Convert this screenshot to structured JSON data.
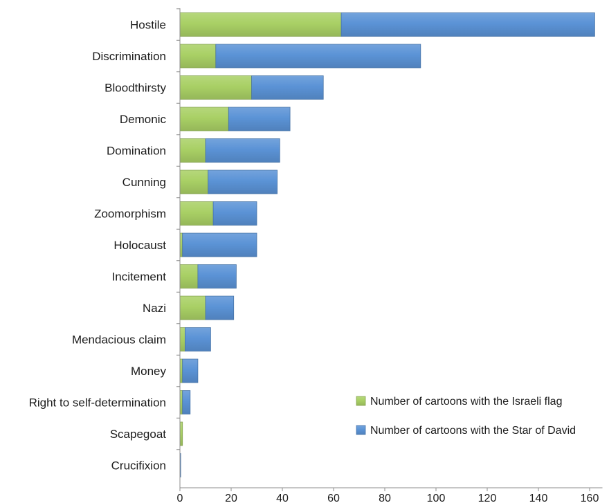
{
  "chart_data": {
    "type": "bar",
    "orientation": "horizontal",
    "stacked": true,
    "categories": [
      "Hostile",
      "Discrimination",
      "Bloodthirsty",
      "Demonic",
      "Domination",
      "Cunning",
      "Zoomorphism",
      "Holocaust",
      "Incitement",
      "Nazi",
      "Mendacious claim",
      "Money",
      "Right to self-determination",
      "Scapegoat",
      "Crucifixion"
    ],
    "series": [
      {
        "name": "Number of cartoons with the Israeli flag",
        "color": "#a9d065",
        "values": [
          63,
          14,
          28,
          19,
          10,
          11,
          13,
          1,
          7,
          10,
          2,
          1,
          1,
          1,
          0
        ]
      },
      {
        "name": "Number of cartoons with the Star of David",
        "color": "#5b93d6",
        "values": [
          99,
          80,
          28,
          24,
          29,
          27,
          17,
          29,
          15,
          11,
          10,
          6,
          3,
          0,
          0.3
        ]
      }
    ],
    "xlim": [
      0,
      165
    ],
    "xticks": [
      0,
      20,
      40,
      60,
      80,
      100,
      120,
      140,
      160
    ],
    "title": "",
    "xlabel": "",
    "ylabel": "",
    "grid": false,
    "legend_position": "bottom-right"
  }
}
